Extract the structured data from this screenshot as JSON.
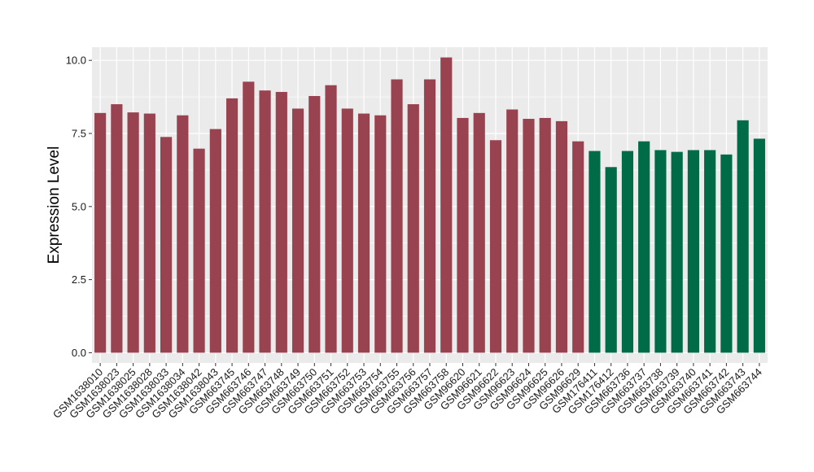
{
  "chart_data": {
    "type": "bar",
    "title": "",
    "xlabel": "",
    "ylabel": "Expression Level",
    "ylim": [
      -0.35,
      10.45
    ],
    "yticks": [
      0.0,
      2.5,
      5.0,
      7.5,
      10.0
    ],
    "ytick_labels": [
      "0.0",
      "2.5",
      "5.0",
      "7.5",
      "10.0"
    ],
    "grid": true,
    "legend": "none",
    "panel_color": "#ebebeb",
    "grid_color": "#ffffff",
    "categories": [
      "GSM1638010",
      "GSM1638023",
      "GSM1638025",
      "GSM1638028",
      "GSM1638033",
      "GSM1638034",
      "GSM1638042",
      "GSM1638043",
      "GSM663745",
      "GSM663746",
      "GSM663747",
      "GSM663748",
      "GSM663749",
      "GSM663750",
      "GSM663751",
      "GSM663752",
      "GSM663753",
      "GSM663754",
      "GSM663755",
      "GSM663756",
      "GSM663757",
      "GSM663758",
      "GSM96620",
      "GSM96621",
      "GSM96622",
      "GSM96623",
      "GSM96624",
      "GSM96625",
      "GSM96626",
      "GSM96629",
      "GSM176411",
      "GSM176412",
      "GSM663736",
      "GSM663737",
      "GSM663738",
      "GSM663739",
      "GSM663740",
      "GSM663741",
      "GSM663742",
      "GSM663743",
      "GSM663744"
    ],
    "values": [
      8.2,
      8.5,
      8.22,
      8.18,
      7.38,
      8.12,
      6.98,
      7.65,
      8.7,
      9.27,
      8.97,
      8.92,
      8.35,
      8.78,
      9.15,
      8.35,
      8.18,
      8.12,
      9.35,
      8.5,
      9.35,
      10.1,
      8.03,
      8.2,
      7.27,
      8.32,
      8.0,
      8.03,
      7.92,
      7.23,
      6.9,
      6.35,
      6.9,
      7.23,
      6.93,
      6.87,
      6.93,
      6.93,
      6.78,
      7.95,
      7.32
    ],
    "groups": [
      "red",
      "red",
      "red",
      "red",
      "red",
      "red",
      "red",
      "red",
      "red",
      "red",
      "red",
      "red",
      "red",
      "red",
      "red",
      "red",
      "red",
      "red",
      "red",
      "red",
      "red",
      "red",
      "red",
      "red",
      "red",
      "red",
      "red",
      "red",
      "red",
      "red",
      "green",
      "green",
      "green",
      "green",
      "green",
      "green",
      "green",
      "green",
      "green",
      "green",
      "green"
    ],
    "group_colors": {
      "red": "#9a4350",
      "green": "#006b47"
    }
  }
}
